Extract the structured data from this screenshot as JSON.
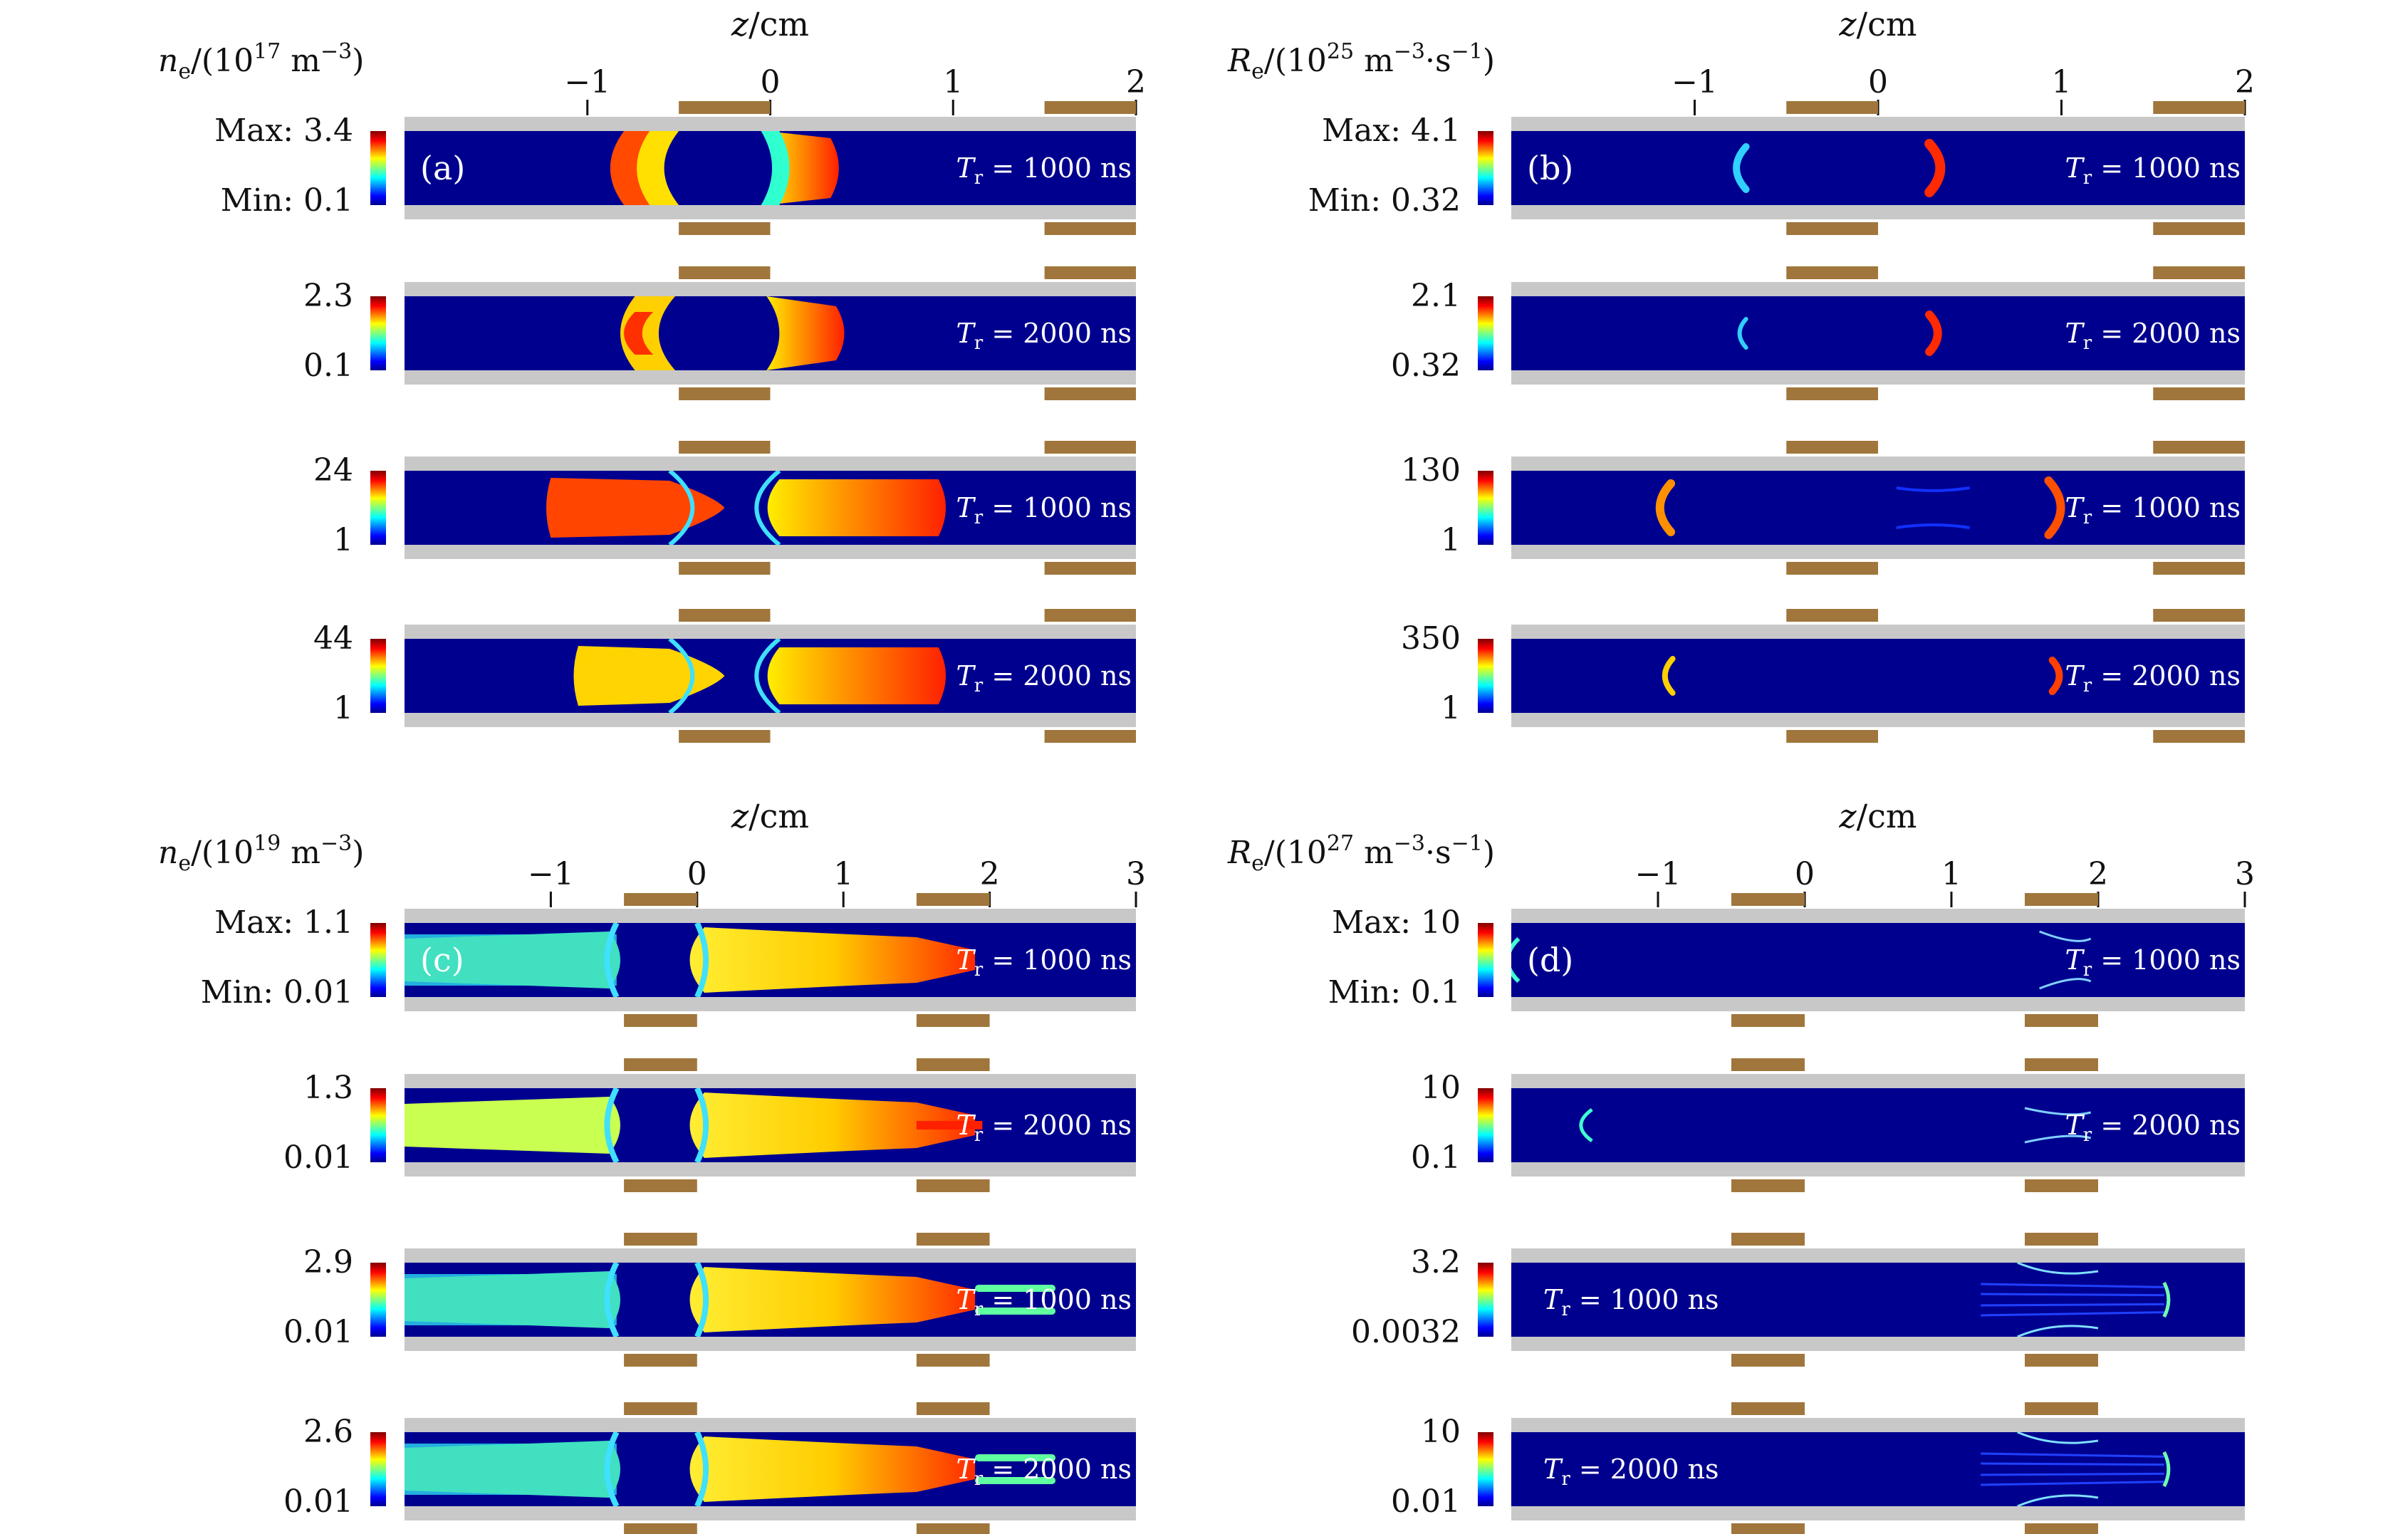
{
  "panels": [
    {
      "id": "a",
      "letter": "(a)",
      "axis_title": "z/cm",
      "quantity": {
        "symbol": "n",
        "sub": "e",
        "pre": "/(10",
        "exp": "17",
        "unit": " m",
        "unit_exp": "-3",
        "tail": ")"
      },
      "ticks": [
        "-1",
        "0",
        "1",
        "2"
      ],
      "tick_values": [
        -1,
        0,
        1,
        2
      ],
      "z_range": [
        -2.0,
        2.0
      ],
      "electrodes": [
        [
          -0.5,
          0.0
        ],
        [
          1.5,
          2.0
        ]
      ],
      "rows": [
        {
          "max": "Max: 3.4",
          "min": "Min: 0.1",
          "tr": "= 1000 ns",
          "tr_side": "right"
        },
        {
          "max": "2.3",
          "min": "0.1",
          "tr": "= 2000 ns",
          "tr_side": "right"
        },
        {
          "max": "24",
          "min": "1",
          "tr": "= 1000 ns",
          "tr_side": "right"
        },
        {
          "max": "44",
          "min": "1",
          "tr": "= 2000 ns",
          "tr_side": "right"
        }
      ]
    },
    {
      "id": "b",
      "letter": "(b)",
      "axis_title": "z/cm",
      "quantity": {
        "symbol": "R",
        "sub": "e",
        "pre": "/(10",
        "exp": "25",
        "unit": " m",
        "unit_exp": "-3",
        "tail": "·s",
        "tail_exp": "-1",
        "end": ")"
      },
      "ticks": [
        "-1",
        "0",
        "1",
        "2"
      ],
      "tick_values": [
        -1,
        0,
        1,
        2
      ],
      "z_range": [
        -2.0,
        2.0
      ],
      "electrodes": [
        [
          -0.5,
          0.0
        ],
        [
          1.5,
          2.0
        ]
      ],
      "rows": [
        {
          "max": "Max: 4.1",
          "min": "Min: 0.32",
          "tr": "= 1000 ns",
          "tr_side": "right"
        },
        {
          "max": "2.1",
          "min": "0.32",
          "tr": "= 2000 ns",
          "tr_side": "right"
        },
        {
          "max": "130",
          "min": "1",
          "tr": "= 1000 ns",
          "tr_side": "right"
        },
        {
          "max": "350",
          "min": "1",
          "tr": "= 2000 ns",
          "tr_side": "right"
        }
      ]
    },
    {
      "id": "c",
      "letter": "(c)",
      "axis_title": "z/cm",
      "quantity": {
        "symbol": "n",
        "sub": "e",
        "pre": "/(10",
        "exp": "19",
        "unit": " m",
        "unit_exp": "-3",
        "tail": ")"
      },
      "ticks": [
        "-1",
        "0",
        "1",
        "2",
        "3"
      ],
      "tick_values": [
        -1,
        0,
        1,
        2,
        3
      ],
      "z_range": [
        -2.0,
        3.0
      ],
      "electrodes": [
        [
          -0.5,
          0.0
        ],
        [
          1.5,
          2.0
        ]
      ],
      "rows": [
        {
          "max": "Max: 1.1",
          "min": "Min: 0.01",
          "tr": "= 1000 ns",
          "tr_side": "right"
        },
        {
          "max": "1.3",
          "min": "0.01",
          "tr": "= 2000 ns",
          "tr_side": "right"
        },
        {
          "max": "2.9",
          "min": "0.01",
          "tr": "= 1000 ns",
          "tr_side": "right"
        },
        {
          "max": "2.6",
          "min": "0.01",
          "tr": "= 2000 ns",
          "tr_side": "right"
        }
      ]
    },
    {
      "id": "d",
      "letter": "(d)",
      "axis_title": "z/cm",
      "quantity": {
        "symbol": "R",
        "sub": "e",
        "pre": "/(10",
        "exp": "27",
        "unit": " m",
        "unit_exp": "-3",
        "tail": "·s",
        "tail_exp": "-1",
        "end": ")"
      },
      "ticks": [
        "-1",
        "0",
        "1",
        "2",
        "3"
      ],
      "tick_values": [
        -1,
        0,
        1,
        2,
        3
      ],
      "z_range": [
        -2.0,
        3.0
      ],
      "electrodes": [
        [
          -0.5,
          0.0
        ],
        [
          1.5,
          2.0
        ]
      ],
      "rows": [
        {
          "max": "Max: 10",
          "min": "Min: 0.1",
          "tr": "= 1000 ns",
          "tr_side": "right"
        },
        {
          "max": "10",
          "min": "0.1",
          "tr": "= 2000 ns",
          "tr_side": "right"
        },
        {
          "max": "3.2",
          "min": "0.0032",
          "tr": "= 1000 ns",
          "tr_side": "left"
        },
        {
          "max": "10",
          "min": "0.01",
          "tr": "= 2000 ns",
          "tr_side": "left"
        }
      ]
    }
  ],
  "tr_symbol": "T",
  "tr_sub": "r",
  "colors": {
    "background": "#00008f",
    "wall": "#c8c8c8",
    "electrode": "#a0763c"
  }
}
